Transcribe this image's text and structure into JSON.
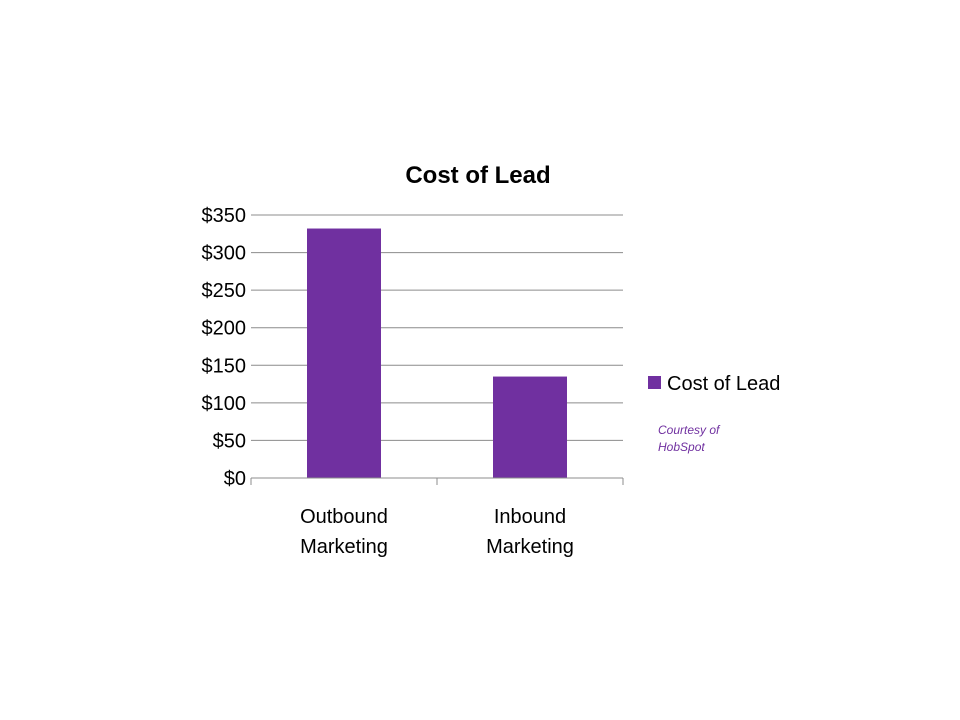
{
  "colors": {
    "bar": "#7030A0",
    "grid": "#8c8c8c",
    "note": "#7030A0"
  },
  "note": "Courtesy of HobSpot",
  "chart_data": {
    "type": "bar",
    "title": "Cost of Lead",
    "categories": [
      "Outbound Marketing",
      "Inbound Marketing"
    ],
    "category_lines": [
      [
        "Outbound",
        "Marketing"
      ],
      [
        "Inbound",
        "Marketing"
      ]
    ],
    "series": [
      {
        "name": "Cost of Lead",
        "values": [
          332,
          135
        ]
      }
    ],
    "ylim": [
      0,
      350
    ],
    "y_ticks": [
      0,
      50,
      100,
      150,
      200,
      250,
      300,
      350
    ],
    "y_tick_labels": [
      "$0",
      "$50",
      "$100",
      "$150",
      "$200",
      "$250",
      "$300",
      "$350"
    ],
    "grid": true,
    "legend": "right",
    "xlabel": "",
    "ylabel": ""
  }
}
